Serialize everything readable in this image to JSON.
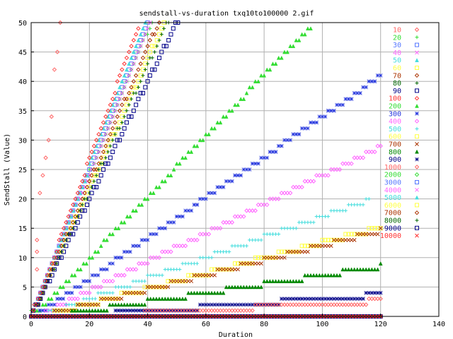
{
  "chart_data": {
    "type": "scatter",
    "title": "sendstall-vs-duration txq10to100000 2.gif",
    "xlabel": "Duration",
    "ylabel": "SendStall (Value)",
    "xlim": [
      0,
      140
    ],
    "ylim": [
      0,
      50
    ],
    "xticks": [
      "0",
      "20",
      "40",
      "60",
      "80",
      "100",
      "120",
      "140"
    ],
    "yticks": [
      "0",
      "5",
      "10",
      "15",
      "20",
      "25",
      "30",
      "35",
      "40",
      "45",
      "50"
    ],
    "grid": true,
    "legend_position": "right",
    "series": [
      {
        "name": "10",
        "color": "#ff6666",
        "marker": "diamond",
        "style": "outlier",
        "points": [
          [
            1,
            0
          ],
          [
            1,
            2
          ],
          [
            2,
            8
          ],
          [
            2,
            11
          ],
          [
            2,
            13
          ],
          [
            3,
            21
          ],
          [
            4,
            24
          ],
          [
            5,
            27
          ],
          [
            6,
            30
          ],
          [
            7,
            34
          ],
          [
            8,
            42
          ],
          [
            9,
            45
          ],
          [
            10,
            50
          ]
        ]
      },
      {
        "name": "20",
        "color": "#33dd33",
        "marker": "plus",
        "style": "steep",
        "slope": 1.2,
        "offset": 1.0,
        "xmax": 46
      },
      {
        "name": "30",
        "color": "#5577ff",
        "marker": "square",
        "style": "steep",
        "slope": 1.26,
        "offset": 0.2,
        "xmax": 42
      },
      {
        "name": "40",
        "color": "#ff66ff",
        "marker": "x",
        "style": "steep",
        "slope": 1.22,
        "offset": 0.5,
        "xmax": 44
      },
      {
        "name": "50",
        "color": "#44dddd",
        "marker": "triangle",
        "style": "steep",
        "slope": 1.3,
        "offset": 0.0,
        "xmax": 40
      },
      {
        "name": "60",
        "color": "#ffff44",
        "marker": "square",
        "style": "steep",
        "slope": 1.1,
        "offset": 0.3,
        "xmax": 48
      },
      {
        "name": "70",
        "color": "#aa3300",
        "marker": "diamond",
        "style": "steep",
        "slope": 1.15,
        "offset": 0.2,
        "xmax": 46
      },
      {
        "name": "80",
        "color": "#006600",
        "marker": "plus",
        "style": "steep",
        "slope": 1.07,
        "offset": 0.4,
        "xmax": 49
      },
      {
        "name": "90",
        "color": "#000088",
        "marker": "square",
        "style": "steep",
        "slope": 1.0,
        "offset": 0.5,
        "xmax": 53
      },
      {
        "name": "100",
        "color": "#ff3333",
        "marker": "diamond",
        "style": "steep",
        "slope": 1.35,
        "offset": 0.1,
        "xmax": 37
      },
      {
        "name": "200",
        "color": "#33dd33",
        "marker": "triangle",
        "style": "diag",
        "slope": 0.52,
        "offset": 0.0,
        "xmax": 96
      },
      {
        "name": "300",
        "color": "#2233dd",
        "marker": "star",
        "style": "diag",
        "slope": 0.345,
        "offset": 0.0,
        "xmax": 120
      },
      {
        "name": "400",
        "color": "#ff66ff",
        "marker": "diamond",
        "style": "diag",
        "slope": 0.245,
        "offset": 0.0,
        "xmax": 120
      },
      {
        "name": "500",
        "color": "#44dddd",
        "marker": "plus",
        "style": "diag",
        "slope": 0.175,
        "offset": 0.0,
        "xmax": 116
      },
      {
        "name": "600",
        "color": "#ffff44",
        "marker": "square",
        "style": "diag",
        "slope": 0.13,
        "offset": 0.0,
        "xmax": 120
      },
      {
        "name": "700",
        "color": "#aa3300",
        "marker": "x",
        "style": "diag",
        "slope": 0.125,
        "offset": 0.0,
        "xmax": 120
      },
      {
        "name": "800",
        "color": "#008800",
        "marker": "triangle",
        "style": "diag",
        "slope": 0.075,
        "offset": 0.0,
        "xmax": 120
      },
      {
        "name": "900",
        "color": "#000088",
        "marker": "star",
        "style": "diag",
        "slope": 0.035,
        "offset": 0.0,
        "xmax": 120
      },
      {
        "name": "1000",
        "color": "#ff6666",
        "marker": "diamond",
        "style": "diag",
        "slope": 0.026,
        "offset": 0.0,
        "xmax": 120
      },
      {
        "name": "2000",
        "color": "#33dd33",
        "marker": "diamond",
        "style": "flat",
        "value": 0
      },
      {
        "name": "3000",
        "color": "#5577ff",
        "marker": "square",
        "style": "flat",
        "value": 0
      },
      {
        "name": "4000",
        "color": "#ff66ff",
        "marker": "x",
        "style": "flat",
        "value": 0
      },
      {
        "name": "5000",
        "color": "#44dddd",
        "marker": "triangle",
        "style": "flat",
        "value": 0
      },
      {
        "name": "6000",
        "color": "#ffff44",
        "marker": "square",
        "style": "flat",
        "value": 0
      },
      {
        "name": "7000",
        "color": "#aa3300",
        "marker": "diamond",
        "style": "flat",
        "value": 0
      },
      {
        "name": "8000",
        "color": "#006600",
        "marker": "plus",
        "style": "flat",
        "value": 0
      },
      {
        "name": "9000",
        "color": "#000088",
        "marker": "square",
        "style": "flat",
        "value": 0
      },
      {
        "name": "10000",
        "color": "#ff3333",
        "marker": "x",
        "style": "flat",
        "value": 0
      }
    ]
  }
}
